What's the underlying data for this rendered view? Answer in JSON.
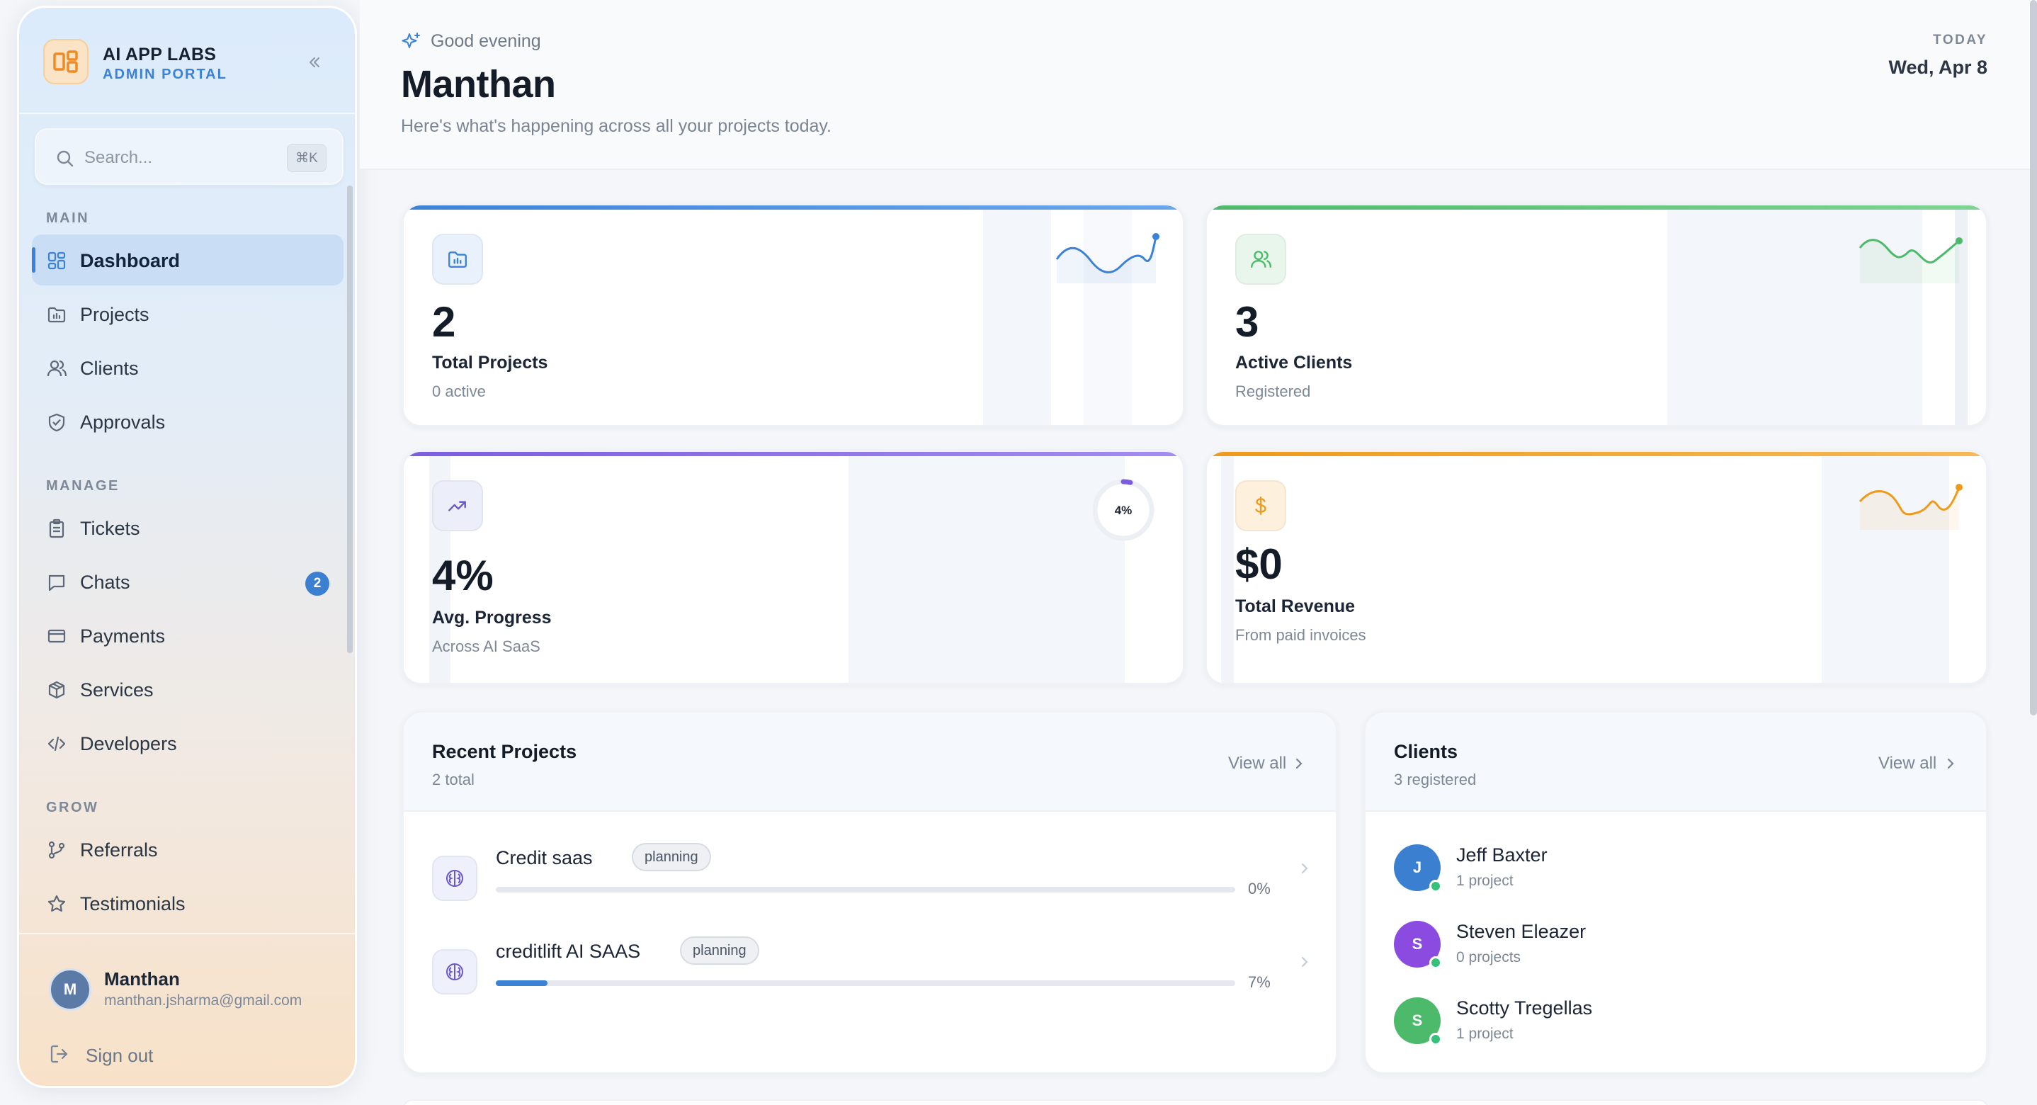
{
  "brand": {
    "title": "AI APP LABS",
    "subtitle": "ADMIN PORTAL",
    "accent": "#3b82d6",
    "logo_color": "#f08a24"
  },
  "search": {
    "placeholder": "Search...",
    "shortcut": "⌘K"
  },
  "sidebar": {
    "sections": [
      {
        "label": "MAIN"
      },
      {
        "label": "MANAGE"
      },
      {
        "label": "GROW"
      }
    ],
    "items": [
      {
        "label": "Dashboard",
        "icon": "layout-grid-icon",
        "active": true
      },
      {
        "label": "Projects",
        "icon": "folder-chart-icon"
      },
      {
        "label": "Clients",
        "icon": "users-icon"
      },
      {
        "label": "Approvals",
        "icon": "shield-check-icon"
      },
      {
        "label": "Tickets",
        "icon": "clipboard-icon"
      },
      {
        "label": "Chats",
        "icon": "message-square-icon",
        "badge": "2"
      },
      {
        "label": "Payments",
        "icon": "credit-card-icon"
      },
      {
        "label": "Services",
        "icon": "package-icon"
      },
      {
        "label": "Developers",
        "icon": "code-icon"
      },
      {
        "label": "Referrals",
        "icon": "git-branch-icon"
      },
      {
        "label": "Testimonials",
        "icon": "star-icon"
      }
    ]
  },
  "user": {
    "initial": "M",
    "name": "Manthan",
    "email": "manthan.jsharma@gmail.com",
    "signout_label": "Sign out"
  },
  "header": {
    "greeting": "Good evening",
    "name": "Manthan",
    "subtitle": "Here's what's happening across all your projects today.",
    "today_label": "TODAY",
    "date": "Wed, Apr 8"
  },
  "stats": [
    {
      "value": "2",
      "title": "Total Projects",
      "sub": "0 active",
      "color": "#3b82d6",
      "icon": "folder-chart-icon"
    },
    {
      "value": "3",
      "title": "Active Clients",
      "sub": "Registered",
      "color": "#4cba6a",
      "icon": "users-icon"
    },
    {
      "value": "4%",
      "title": "Avg. Progress",
      "sub": "Across AI SaaS",
      "color": "#7c5ce0",
      "icon": "trending-up-icon",
      "ring_label": "4%",
      "ring_value": 0.04
    },
    {
      "value": "$0",
      "title": "Total Revenue",
      "sub": "From paid invoices",
      "color": "#ee9a1c",
      "icon": "dollar-icon"
    }
  ],
  "recent_projects": {
    "title": "Recent Projects",
    "sub": "2 total",
    "view_all": "View all",
    "items": [
      {
        "name": "Credit saas",
        "tag": "planning",
        "progress": 0,
        "pct_label": "0%"
      },
      {
        "name": "creditlift AI SAAS",
        "tag": "planning",
        "progress": 0.07,
        "pct_label": "7%"
      }
    ]
  },
  "clients": {
    "title": "Clients",
    "sub": "3 registered",
    "view_all": "View all",
    "items": [
      {
        "initial": "J",
        "name": "Jeff Baxter",
        "projects": "1 project",
        "color": "#3b7fd1"
      },
      {
        "initial": "S",
        "name": "Steven Eleazer",
        "projects": "0 projects",
        "color": "#8b4be0"
      },
      {
        "initial": "S",
        "name": "Scotty Tregellas",
        "projects": "1 project",
        "color": "#4cba6a"
      }
    ]
  }
}
